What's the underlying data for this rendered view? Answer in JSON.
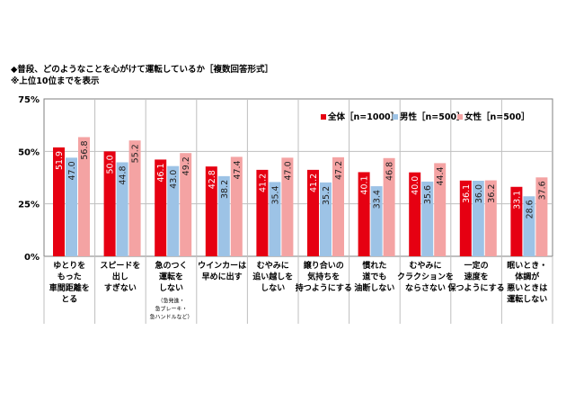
{
  "title": "◆普段、どのようなことを心がけて運転しているか［複数回答形式］",
  "subtitle": "※上位10位までを表示",
  "chart_data": {
    "type": "bar",
    "ylim": [
      0,
      75
    ],
    "yticks": [
      "0%",
      "25%",
      "50%",
      "75%"
    ],
    "yticks_values": [
      0,
      25,
      50,
      75
    ],
    "legend_position": "top-right",
    "categories": [
      [
        "ゆとりを",
        "もった",
        "車間距離を",
        "とる"
      ],
      [
        "スピードを",
        "出し",
        "すぎない"
      ],
      [
        "急のつく",
        "運転を",
        "しない"
      ],
      [
        "ウインカーは",
        "早めに出す"
      ],
      [
        "むやみに",
        "追い越しを",
        "しない"
      ],
      [
        "譲り合いの",
        "気持ちを",
        "持つようにする"
      ],
      [
        "慣れた",
        "道でも",
        "油断しない"
      ],
      [
        "むやみに",
        "クラクションを",
        "ならさない"
      ],
      [
        "一定の",
        "速度を",
        "保つようにする"
      ],
      [
        "眠いとき・",
        "体調が",
        "悪いときは",
        "運転しない"
      ]
    ],
    "category_notes": [
      "",
      "",
      "（急発進・急ブレーキ・急ハンドルなど）",
      "",
      "",
      "",
      "",
      "",
      "",
      ""
    ],
    "series": [
      {
        "name": "全体［n=1000］",
        "color": "#e60012",
        "values": [
          51.9,
          50.0,
          46.1,
          42.8,
          41.2,
          41.2,
          40.1,
          40.0,
          36.1,
          33.1
        ]
      },
      {
        "name": "男性［n=500］",
        "color": "#9dc3e6",
        "values": [
          47.0,
          44.8,
          43.0,
          38.2,
          35.4,
          35.2,
          33.4,
          35.6,
          36.0,
          28.6
        ]
      },
      {
        "name": "女性［n=500］",
        "color": "#f4a3a3",
        "values": [
          56.8,
          55.2,
          49.2,
          47.4,
          47.0,
          47.2,
          46.8,
          44.4,
          36.2,
          37.6
        ]
      }
    ]
  }
}
